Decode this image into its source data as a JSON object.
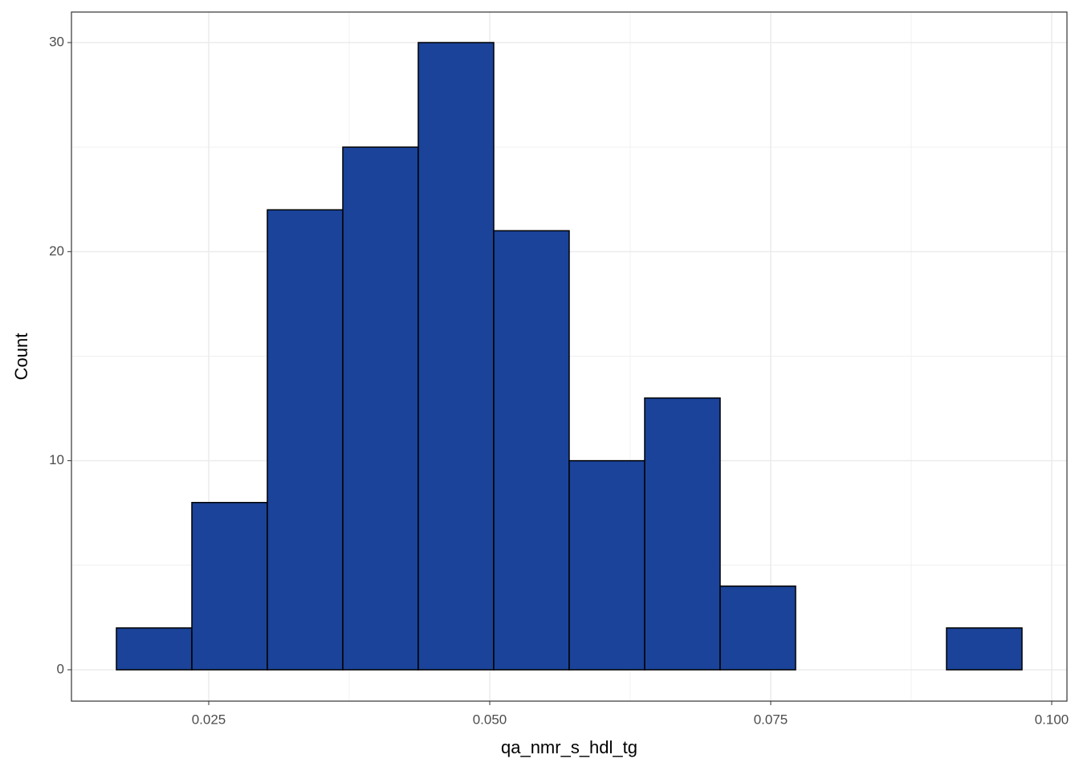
{
  "chart_data": {
    "type": "histogram",
    "x_label": "qa_nmr_s_hdl_tg",
    "y_label": "Count",
    "bins": [
      0.016786,
      0.0235,
      0.030214,
      0.036929,
      0.043643,
      0.050357,
      0.057071,
      0.063786,
      0.0705,
      0.077214,
      0.083929,
      0.090643,
      0.097357
    ],
    "values": [
      2,
      8,
      22,
      25,
      30,
      21,
      10,
      13,
      4,
      0,
      0,
      2
    ],
    "color": "#1a4399",
    "edge_color": "#000000",
    "xlim": [
      0.012786,
      0.101357
    ],
    "ylim": [
      -1.5,
      31.46
    ],
    "xticks": [
      0.025,
      {
        "value": 0.05,
        "label": "0.050"
      },
      0.075,
      {
        "value": 0.1,
        "label": "0.100"
      }
    ],
    "yticks": [
      0,
      10,
      20,
      30
    ],
    "xminor": [
      0.0375,
      0.0625,
      0.0875
    ],
    "yminor": [
      5,
      15,
      25
    ],
    "grid": true
  }
}
